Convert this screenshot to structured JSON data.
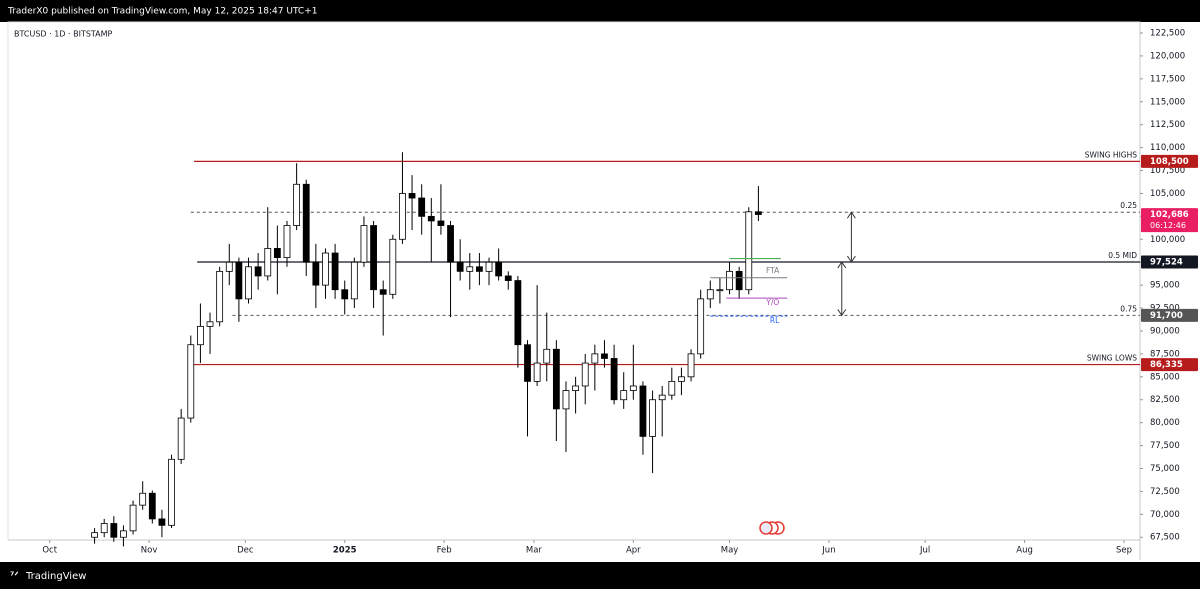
{
  "header": {
    "published": "TraderX0 published on TradingView.com, May 12, 2025 18:47 UTC+1",
    "brand": "TradingView"
  },
  "chart_data": {
    "type": "candlestick",
    "title": "BTCUSD · 1D · BITSTAMP",
    "xlim": [
      -13,
      340
    ],
    "ylim": [
      67200,
      123700
    ],
    "xticks": [
      {
        "value": 0,
        "label": "Oct"
      },
      {
        "value": 31,
        "label": "Nov"
      },
      {
        "value": 61,
        "label": "Dec"
      },
      {
        "value": 92,
        "label": "2025"
      },
      {
        "value": 123,
        "label": "Feb"
      },
      {
        "value": 151,
        "label": "Mar"
      },
      {
        "value": 182,
        "label": "Apr"
      },
      {
        "value": 212,
        "label": "May"
      },
      {
        "value": 243,
        "label": "Jun"
      },
      {
        "value": 273,
        "label": "Jul"
      },
      {
        "value": 304,
        "label": "Aug"
      },
      {
        "value": 335,
        "label": "Sep"
      }
    ],
    "yticks": [
      {
        "value": 67500,
        "label": "67,500"
      },
      {
        "value": 70000,
        "label": "70,000"
      },
      {
        "value": 72500,
        "label": "72,500"
      },
      {
        "value": 75000,
        "label": "75,000"
      },
      {
        "value": 77500,
        "label": "77,500"
      },
      {
        "value": 80000,
        "label": "80,000"
      },
      {
        "value": 82500,
        "label": "82,500"
      },
      {
        "value": 85000,
        "label": "85,000"
      },
      {
        "value": 87500,
        "label": "87,500"
      },
      {
        "value": 90000,
        "label": "90,000"
      },
      {
        "value": 92500,
        "label": "92,500"
      },
      {
        "value": 95000,
        "label": "95,000"
      },
      {
        "value": 97500,
        "label": "97,500"
      },
      {
        "value": 100000,
        "label": "100,000"
      },
      {
        "value": 102500,
        "label": "102,500"
      },
      {
        "value": 105000,
        "label": "105,000"
      },
      {
        "value": 107500,
        "label": "107,500"
      },
      {
        "value": 110000,
        "label": "110,000"
      },
      {
        "value": 112500,
        "label": "112,500"
      },
      {
        "value": 115000,
        "label": "115,000"
      },
      {
        "value": 117500,
        "label": "117,500"
      },
      {
        "value": 120000,
        "label": "120,000"
      },
      {
        "value": 122500,
        "label": "122,500"
      }
    ],
    "grid": false,
    "up_color": "#ffffff",
    "down_color": "#000000",
    "candles": [
      [
        14,
        67500,
        68500,
        66800,
        68000
      ],
      [
        17,
        68000,
        69500,
        67500,
        69000
      ],
      [
        20,
        69000,
        69800,
        67000,
        67500
      ],
      [
        23,
        67500,
        68800,
        66500,
        68200
      ],
      [
        26,
        68200,
        71500,
        67800,
        71000
      ],
      [
        29,
        71000,
        73600,
        70500,
        72300
      ],
      [
        32,
        72300,
        72600,
        69000,
        69500
      ],
      [
        35,
        69500,
        70500,
        67500,
        68800
      ],
      [
        38,
        68800,
        76500,
        68500,
        76000
      ],
      [
        41,
        76000,
        81500,
        75500,
        80500
      ],
      [
        44,
        80500,
        89500,
        80000,
        88500
      ],
      [
        47,
        88500,
        93000,
        86500,
        90500
      ],
      [
        50,
        90500,
        92000,
        87500,
        91000
      ],
      [
        53,
        91000,
        97000,
        90500,
        96500
      ],
      [
        56,
        96500,
        99500,
        95000,
        97500
      ],
      [
        59,
        97500,
        98000,
        91000,
        93500
      ],
      [
        62,
        93500,
        98000,
        93000,
        97000
      ],
      [
        65,
        97000,
        98500,
        94500,
        96000
      ],
      [
        68,
        96000,
        103500,
        95500,
        99000
      ],
      [
        71,
        99000,
        101500,
        94000,
        98000
      ],
      [
        74,
        98000,
        102000,
        97000,
        101500
      ],
      [
        77,
        101500,
        108300,
        101000,
        106000
      ],
      [
        80,
        106000,
        106500,
        96000,
        97500
      ],
      [
        83,
        97500,
        99500,
        92500,
        95000
      ],
      [
        86,
        95000,
        99000,
        93500,
        98500
      ],
      [
        89,
        98500,
        99500,
        93500,
        94500
      ],
      [
        92,
        94500,
        95500,
        91800,
        93500
      ],
      [
        95,
        93500,
        98000,
        92500,
        97500
      ],
      [
        98,
        97500,
        102500,
        97000,
        101500
      ],
      [
        101,
        101500,
        102000,
        92500,
        94500
      ],
      [
        104,
        94500,
        95500,
        89500,
        94000
      ],
      [
        107,
        94000,
        100500,
        93500,
        100000
      ],
      [
        110,
        100000,
        109500,
        99500,
        105000
      ],
      [
        113,
        105000,
        107000,
        101000,
        104500
      ],
      [
        116,
        104500,
        106000,
        100500,
        102500
      ],
      [
        119,
        102500,
        104500,
        97500,
        102000
      ],
      [
        122,
        102000,
        106000,
        100500,
        101500
      ],
      [
        125,
        101500,
        102000,
        91500,
        97500
      ],
      [
        128,
        97500,
        100000,
        95500,
        96500
      ],
      [
        131,
        96500,
        98500,
        94500,
        97000
      ],
      [
        134,
        97000,
        98500,
        95000,
        96500
      ],
      [
        137,
        96500,
        98000,
        95000,
        97500
      ],
      [
        140,
        97500,
        99000,
        95500,
        96000
      ],
      [
        143,
        96000,
        96500,
        94500,
        95500
      ],
      [
        146,
        95500,
        96000,
        86000,
        88500
      ],
      [
        149,
        88500,
        89000,
        78500,
        84500
      ],
      [
        152,
        84500,
        95000,
        84000,
        86500
      ],
      [
        155,
        86500,
        92000,
        84500,
        88000
      ],
      [
        158,
        88000,
        89000,
        78000,
        81500
      ],
      [
        161,
        81500,
        84500,
        76800,
        83500
      ],
      [
        164,
        83500,
        85000,
        81000,
        84000
      ],
      [
        167,
        84000,
        87500,
        82000,
        86500
      ],
      [
        170,
        86500,
        88500,
        83500,
        87500
      ],
      [
        173,
        87500,
        89000,
        86000,
        87000
      ],
      [
        176,
        87000,
        88500,
        82000,
        82500
      ],
      [
        179,
        82500,
        85500,
        81500,
        83500
      ],
      [
        182,
        83500,
        88500,
        82500,
        84000
      ],
      [
        185,
        84000,
        84500,
        76500,
        78500
      ],
      [
        188,
        78500,
        83500,
        74500,
        82500
      ],
      [
        191,
        82500,
        84000,
        78500,
        83000
      ],
      [
        194,
        83000,
        86000,
        82500,
        84500
      ],
      [
        197,
        84500,
        86000,
        83000,
        85000
      ],
      [
        200,
        85000,
        88000,
        84500,
        87500
      ],
      [
        203,
        87500,
        94500,
        87000,
        93500
      ],
      [
        206,
        93500,
        95500,
        92500,
        94500
      ],
      [
        209,
        94500,
        95800,
        93000,
        94500
      ],
      [
        212,
        94500,
        97500,
        94000,
        96500
      ],
      [
        215,
        96500,
        97000,
        93500,
        94500
      ],
      [
        218,
        94500,
        103500,
        94000,
        103000
      ],
      [
        221,
        103000,
        105800,
        102000,
        102700
      ]
    ],
    "levels": [
      {
        "name": "SWING HIGHS",
        "value": 108500,
        "value_label": "108,500",
        "color": "#b71c1c",
        "dashed": false,
        "start": 45
      },
      {
        "name": "0.25",
        "value": 102950,
        "color": "#555555",
        "dashed": true,
        "start": 44
      },
      {
        "name": "0.5 MID",
        "value": 97524,
        "value_label": "97,524",
        "color": "#131722",
        "dashed": false,
        "start": 46
      },
      {
        "name": "0.75",
        "value": 91700,
        "value_label": "91,700",
        "color": "#555555",
        "dashed": true,
        "start": 57
      },
      {
        "name": "SWING LOWS",
        "value": 86335,
        "value_label": "86,335",
        "color": "#b71c1c",
        "dashed": false,
        "start": 43
      }
    ],
    "last_price": {
      "value": 102686,
      "label": "102,686",
      "countdown": "06:12:46",
      "color": "#e91e63"
    },
    "annotations": [
      {
        "text": "FTA",
        "value": 95800,
        "start": 206,
        "end": 230,
        "color": "#787b86",
        "dashed": false
      },
      {
        "text": "Y/O",
        "value": 93580,
        "start": 211,
        "end": 230,
        "color": "#ab47bc",
        "dashed": false
      },
      {
        "text": "RL",
        "value": 91620,
        "start": 206,
        "end": 230,
        "color": "#2962ff",
        "dashed": true
      }
    ],
    "guide_lines": [
      {
        "value": 97900,
        "start": 212,
        "end": 228,
        "color": "#4caf50"
      }
    ],
    "arrows": [
      {
        "x": 250,
        "from": 102950,
        "to": 97524
      },
      {
        "x": 247,
        "from": 97524,
        "to": 91700
      }
    ]
  }
}
